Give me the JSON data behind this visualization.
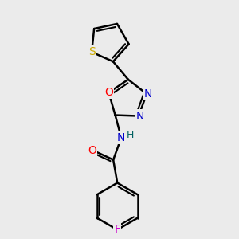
{
  "background_color": "#ebebeb",
  "bond_color": "#000000",
  "bond_width": 1.8,
  "atom_colors": {
    "S": "#ccaa00",
    "O": "#ff0000",
    "N": "#0000cc",
    "F": "#cc00cc",
    "H": "#006060",
    "C": "#000000"
  },
  "font_size_atom": 10,
  "font_size_H": 9,
  "figsize": [
    3.0,
    3.0
  ],
  "dpi": 100
}
